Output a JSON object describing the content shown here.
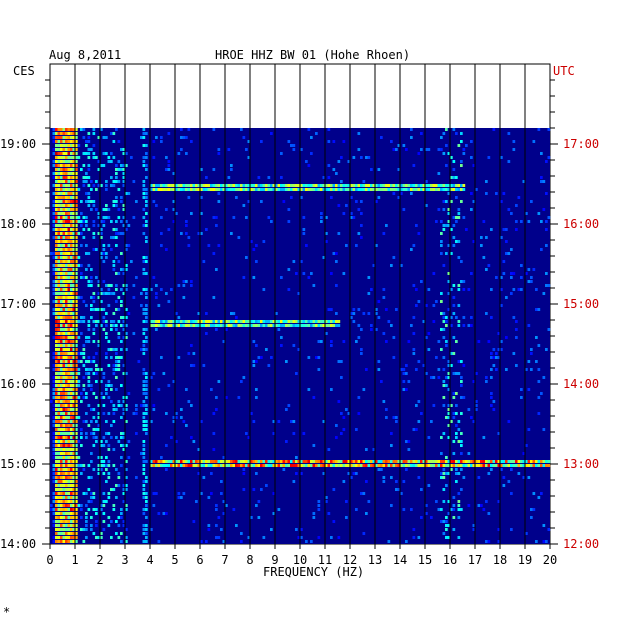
{
  "header": {
    "date": "Aug 8,2011",
    "station": "HROE HHZ BW 01 (Hohe Rhoen)",
    "left_zone": "CES",
    "right_zone": "UTC"
  },
  "colors": {
    "background": "#00008b",
    "frame": "#000000",
    "utc_text": "#cc0000",
    "label_text": "#000000"
  },
  "footer_mark": "*",
  "chart_data": {
    "type": "heatmap",
    "title": "HROE HHZ BW 01 (Hohe Rhoen)",
    "date": "Aug 8,2011",
    "xlabel": "FREQUENCY (HZ)",
    "x_ticks": [
      "0",
      "1",
      "2",
      "3",
      "4",
      "5",
      "6",
      "7",
      "8",
      "9",
      "10",
      "11",
      "12",
      "13",
      "14",
      "15",
      "16",
      "17",
      "18",
      "19",
      "20"
    ],
    "xlim": [
      0,
      20
    ],
    "left_axis": "CES",
    "left_ticks": [
      "14:00",
      "15:00",
      "16:00",
      "17:00",
      "18:00",
      "19:00"
    ],
    "right_axis": "UTC",
    "right_ticks": [
      "12:00",
      "13:00",
      "14:00",
      "15:00",
      "16:00",
      "17:00"
    ],
    "time_range_ces": [
      "14:00",
      "19:12"
    ],
    "colormap": "jet",
    "features": [
      {
        "desc": "strong microseismic band",
        "freq_hz": [
          0.2,
          1.0
        ],
        "intensity": "high"
      },
      {
        "desc": "broadband low-frequency energy",
        "freq_hz": [
          1.0,
          3.0
        ],
        "intensity": "medium"
      },
      {
        "desc": "narrow line",
        "freq_hz": [
          3.7,
          3.8
        ],
        "intensity": "medium"
      },
      {
        "desc": "persistent band",
        "freq_hz": [
          15.5,
          16.5
        ],
        "intensity": "medium"
      },
      {
        "desc": "horizontal event line",
        "time_ces": "15:00",
        "freq_hz": [
          4,
          20
        ],
        "intensity": "high"
      },
      {
        "desc": "horizontal event line",
        "time_ces": "16:45",
        "freq_hz": [
          4,
          11.5
        ],
        "intensity": "medium"
      },
      {
        "desc": "horizontal event line",
        "time_ces": "18:28",
        "freq_hz": [
          4,
          16.5
        ],
        "intensity": "medium"
      }
    ]
  }
}
